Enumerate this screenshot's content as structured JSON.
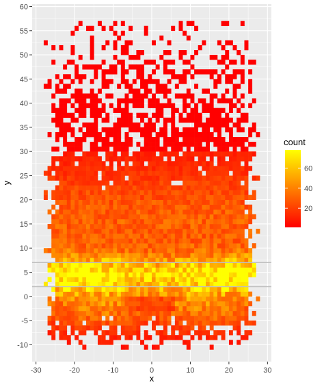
{
  "chart_data": {
    "type": "heatmap",
    "title": "",
    "xlabel": "x",
    "ylabel": "y",
    "xlim": [
      -31,
      31
    ],
    "ylim": [
      -13.5,
      60.5
    ],
    "x_ticks": [
      -30,
      -20,
      -10,
      0,
      10,
      20,
      30
    ],
    "y_ticks": [
      -10,
      -5,
      0,
      5,
      10,
      15,
      20,
      25,
      30,
      35,
      40,
      45,
      50,
      55,
      60
    ],
    "bin_width_x": 1,
    "bin_width_y": 1,
    "grid": true,
    "panel_background": "#ebebeb",
    "reference_lines_y": [
      7,
      2
    ],
    "reference_line_color": "#bfbfbf",
    "legend": {
      "title": "count",
      "position": "right",
      "breaks": [
        20,
        40,
        60
      ],
      "range": [
        1,
        78
      ],
      "low_color": "#ff0000",
      "high_color": "#ffff00"
    },
    "density_description": "2D binned counts; x spans about -28 to 29, y about -11 to 57; highest counts (about 60-78) concentrated in a band near y 2-7 across x -25 to 25, sparse scattered bins above y 35."
  }
}
